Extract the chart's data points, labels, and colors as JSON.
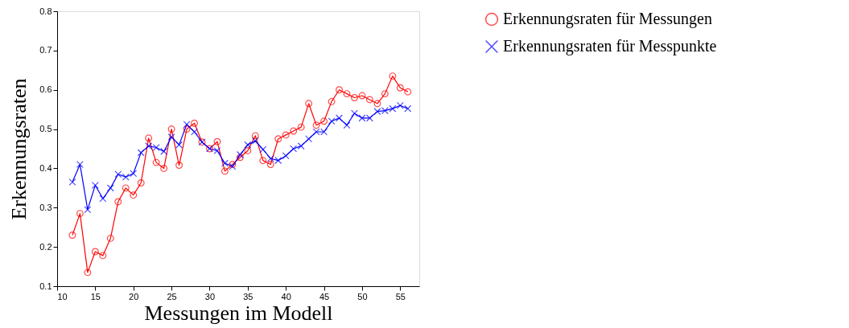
{
  "chart_data": {
    "type": "line",
    "xlabel": "Messungen im Modell",
    "ylabel": "Erkennungsraten",
    "x": [
      12,
      13,
      14,
      15,
      16,
      17,
      18,
      19,
      20,
      21,
      22,
      23,
      24,
      25,
      26,
      27,
      28,
      29,
      30,
      31,
      32,
      33,
      34,
      35,
      36,
      37,
      38,
      39,
      40,
      41,
      42,
      43,
      44,
      45,
      46,
      47,
      48,
      49,
      50,
      51,
      52,
      53,
      54,
      55,
      56
    ],
    "series": [
      {
        "name": "Erkennungsraten für Messungen",
        "color": "#ff0000",
        "marker": "circle",
        "values": [
          0.23,
          0.285,
          0.135,
          0.188,
          0.178,
          0.222,
          0.315,
          0.35,
          0.332,
          0.363,
          0.477,
          0.415,
          0.4,
          0.5,
          0.408,
          0.5,
          0.515,
          0.467,
          0.45,
          0.468,
          0.393,
          0.41,
          0.428,
          0.445,
          0.483,
          0.42,
          0.41,
          0.475,
          0.485,
          0.495,
          0.505,
          0.565,
          0.51,
          0.52,
          0.57,
          0.6,
          0.59,
          0.58,
          0.585,
          0.575,
          0.565,
          0.59,
          0.635,
          0.605,
          0.595
        ]
      },
      {
        "name": "Erkennungsraten für Messpunkte",
        "color": "#0000ff",
        "marker": "cross",
        "values": [
          0.365,
          0.41,
          0.295,
          0.357,
          0.323,
          0.35,
          0.385,
          0.378,
          0.387,
          0.44,
          0.457,
          0.453,
          0.443,
          0.48,
          0.46,
          0.512,
          0.493,
          0.467,
          0.45,
          0.445,
          0.413,
          0.405,
          0.435,
          0.46,
          0.47,
          0.448,
          0.425,
          0.42,
          0.432,
          0.45,
          0.457,
          0.475,
          0.493,
          0.493,
          0.52,
          0.528,
          0.51,
          0.54,
          0.528,
          0.528,
          0.545,
          0.547,
          0.552,
          0.56,
          0.552
        ]
      }
    ],
    "xlim": [
      10,
      57.5
    ],
    "xticks": [
      10,
      15,
      20,
      25,
      30,
      35,
      40,
      45,
      50,
      55
    ],
    "ylim": [
      0.1,
      0.8
    ],
    "yticks": [
      0.1,
      0.2,
      0.3,
      0.4,
      0.5,
      0.6,
      0.7,
      0.8
    ],
    "grid": false,
    "legend": "top right",
    "line_style": "solid"
  }
}
